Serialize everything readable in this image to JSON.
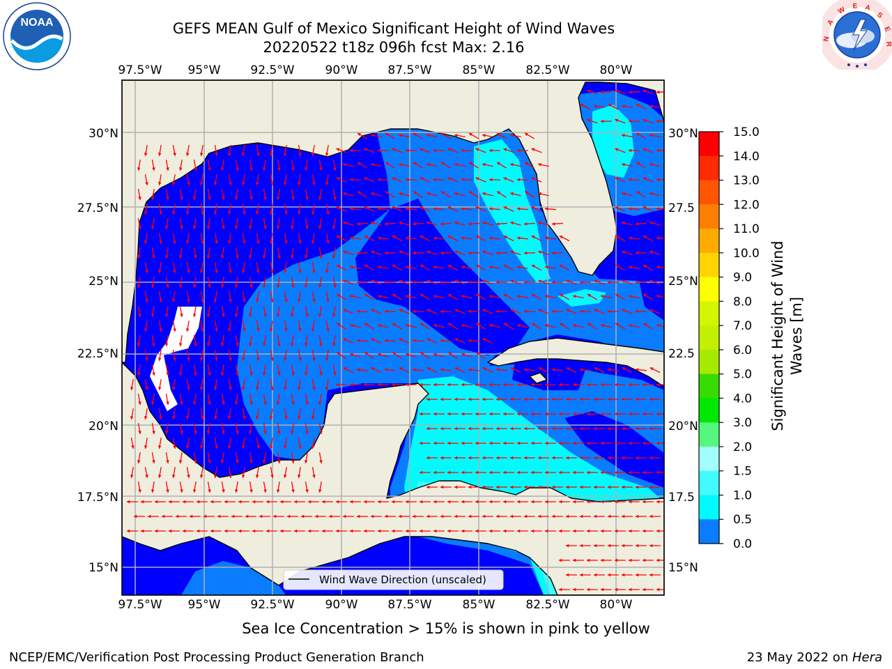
{
  "header": {
    "title_line1": "GEFS MEAN Gulf of Mexico Significant Height of Wind Waves",
    "title_line2": "20220522 t18z 096h fcst   Max: 2.16"
  },
  "logos": {
    "left": {
      "name": "noaa-logo",
      "text": "NOAA",
      "ring_text": "NATIONAL OCEANIC AND ATMOSPHERIC ADMINISTRATION · U.S. DEPARTMENT OF COMMERCE"
    },
    "right": {
      "name": "nws-logo",
      "ring_text": "NATIONAL WEATHER SERVICE"
    }
  },
  "map": {
    "lon_ticks": [
      "97.5°W",
      "95°W",
      "92.5°W",
      "90°W",
      "87.5°W",
      "85°W",
      "82.5°W",
      "80°W"
    ],
    "lat_ticks": [
      "30°N",
      "27.5°N",
      "25°N",
      "22.5°N",
      "20°N",
      "17.5°N",
      "15°N"
    ],
    "lat_ticks_right": [
      "30°N",
      "27.5",
      "25°N",
      "22.5",
      "20°N",
      "17.5",
      "15°N"
    ],
    "legend": "Wind Wave Direction (unscaled)",
    "colors": {
      "land": "#efedde",
      "water_0": "#0000ff",
      "water_05": "#0a7cff",
      "water_10": "#00fbff",
      "water_15": "#41fbff",
      "water_20": "#a3fdfc",
      "arrow": "#ff0000",
      "grid": "#b0b0b0"
    }
  },
  "colorbar": {
    "ticks": [
      "15.0",
      "14.0",
      "13.0",
      "12.0",
      "11.0",
      "10.0",
      "9.0",
      "8.0",
      "7.0",
      "6.0",
      "5.0",
      "4.0",
      "3.0",
      "2.0",
      "1.5",
      "1.0",
      "0.5",
      "0.0"
    ],
    "colors": [
      "#ff0000",
      "#ff2a00",
      "#ff5500",
      "#ff8000",
      "#ffaa00",
      "#ffd400",
      "#ffff00",
      "#d4f500",
      "#c2f000",
      "#a6ea00",
      "#38dc00",
      "#00e800",
      "#55f87c",
      "#a3fdfc",
      "#41fbff",
      "#00fbff",
      "#0a7cff",
      "#0000ff"
    ],
    "label_line1": "Significant Height of Wind",
    "label_line2": "Waves [m]"
  },
  "notes": {
    "sea_ice": "Sea Ice Concentration > 15% is shown in pink to yellow",
    "footer_left": "NCEP/EMC/Verification Post Processing Product Generation Branch",
    "footer_right_prefix": "23 May 2022 on ",
    "footer_right_host": "Hera"
  }
}
